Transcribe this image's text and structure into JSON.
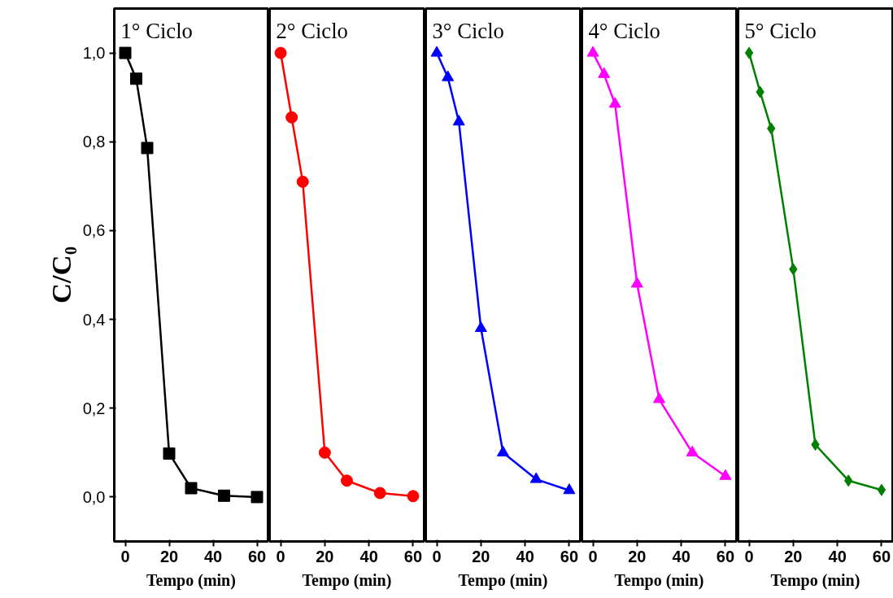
{
  "chart_data": [
    {
      "type": "line",
      "title": "1° Ciclo",
      "xlabel": "Tempo (min)",
      "ylabel": "C/C₀",
      "x": [
        0,
        5,
        10,
        20,
        30,
        45,
        60
      ],
      "xlim": [
        -5,
        65
      ],
      "xticks": [
        0,
        20,
        40,
        60
      ],
      "ylim": [
        -0.1,
        1.1
      ],
      "yticks": [
        {
          "value": 0,
          "label": "0,0"
        },
        {
          "value": 0.2,
          "label": "0,2"
        },
        {
          "value": 0.4,
          "label": "0,4"
        },
        {
          "value": 0.6,
          "label": "0,6"
        },
        {
          "value": 0.8,
          "label": "0,8"
        },
        {
          "value": 1,
          "label": "1,0"
        }
      ],
      "marker": "square",
      "grid": false,
      "series": [
        {
          "color": "#000000",
          "values": [
            1.0,
            0.942,
            0.786,
            0.098,
            0.02,
            0.003,
            0.0
          ]
        }
      ]
    },
    {
      "type": "line",
      "title": "2° Ciclo",
      "xlabel": "Tempo (min)",
      "x": [
        0,
        5,
        10,
        20,
        30,
        45,
        60
      ],
      "xlim": [
        -5,
        65
      ],
      "xticks": [
        0,
        20,
        40,
        60
      ],
      "ylim": [
        -0.1,
        1.1
      ],
      "tick_labels": "x",
      "marker": "circle",
      "grid": false,
      "series": [
        {
          "color": "#ff0000",
          "values": [
            1.0,
            0.855,
            0.71,
            0.1,
            0.037,
            0.009,
            0.002
          ]
        }
      ]
    },
    {
      "type": "line",
      "title": "3° Ciclo",
      "xlabel": "Tempo (min)",
      "x": [
        0,
        5,
        10,
        20,
        30,
        45,
        60
      ],
      "xlim": [
        -5,
        65
      ],
      "xticks": [
        0,
        20,
        40,
        60
      ],
      "ylim": [
        -0.1,
        1.1
      ],
      "tick_labels": "x",
      "marker": "triangle",
      "grid": false,
      "series": [
        {
          "color": "#0000ff",
          "values": [
            1.0,
            0.945,
            0.845,
            0.38,
            0.1,
            0.04,
            0.015
          ]
        }
      ]
    },
    {
      "type": "line",
      "title": "4° Ciclo",
      "xlabel": "Tempo (min)",
      "x": [
        0,
        5,
        10,
        20,
        30,
        45,
        60
      ],
      "xlim": [
        -5,
        65
      ],
      "xticks": [
        0,
        20,
        40,
        60
      ],
      "ylim": [
        -0.1,
        1.1
      ],
      "tick_labels": "x",
      "marker": "triangle",
      "grid": false,
      "series": [
        {
          "color": "#ff00ff",
          "values": [
            1.0,
            0.952,
            0.885,
            0.48,
            0.22,
            0.1,
            0.047
          ]
        }
      ]
    },
    {
      "type": "line",
      "title": "5° Ciclo",
      "xlabel": "Tempo (min)",
      "x": [
        0,
        5,
        10,
        20,
        30,
        45,
        60
      ],
      "xlim": [
        -5,
        65
      ],
      "xticks": [
        0,
        20,
        40,
        60
      ],
      "ylim": [
        -0.1,
        1.1
      ],
      "tick_labels": "x",
      "marker": "diamond",
      "grid": false,
      "series": [
        {
          "color": "#008000",
          "values": [
            1.0,
            0.912,
            0.83,
            0.513,
            0.118,
            0.037,
            0.016
          ]
        }
      ]
    }
  ]
}
